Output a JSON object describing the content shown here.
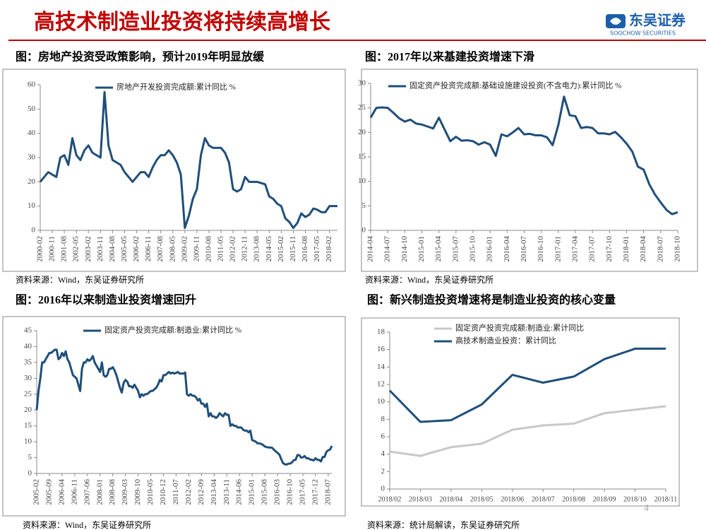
{
  "header": {
    "title": "高技术制造业投资将持续高增长",
    "logo": "东吴证券",
    "logo_en": "SOOCHOW SECURITIES",
    "page": "4"
  },
  "chart_data": [
    {
      "type": "line",
      "title": "图：房地产投资受政策影响，预计2019年明显放缓",
      "source": "资料来源：Wind，东吴证券研究所",
      "categories": [
        "2000-02",
        null,
        null,
        "2000-11",
        null,
        null,
        "2001-08",
        null,
        null,
        "2002-05",
        null,
        null,
        "2003-02",
        null,
        null,
        "2003-11",
        null,
        null,
        "2004-08",
        null,
        null,
        "2005-05",
        null,
        null,
        "2006-02",
        null,
        null,
        "2006-11",
        null,
        null,
        "2007-08",
        null,
        null,
        "2008-05",
        null,
        null,
        "2009-02",
        null,
        null,
        "2009-11",
        null,
        null,
        "2010-08",
        null,
        null,
        "2011-05",
        null,
        null,
        "2012-02",
        null,
        null,
        "2012-11",
        null,
        null,
        "2013-08",
        null,
        null,
        "2014-05",
        null,
        null,
        "2015-02",
        null,
        null,
        "2015-11",
        null,
        null,
        "2016-08",
        null,
        null,
        "2017-05",
        null,
        null,
        "2018-02",
        null,
        null
      ],
      "series": [
        {
          "name": "房地产开发投资完成额:累计同比 %",
          "color": "#1f4e79",
          "values": [
            20,
            22,
            24,
            23,
            22,
            30,
            31,
            27,
            38,
            31,
            29,
            33,
            35,
            32,
            31,
            30,
            57,
            35,
            29,
            28,
            27,
            24,
            22,
            20,
            22,
            24,
            24,
            22,
            26,
            29,
            31,
            31,
            33,
            31,
            28,
            23,
            1,
            6,
            13,
            17,
            31,
            38,
            35,
            34,
            34,
            34,
            32,
            28,
            17,
            16,
            17,
            22,
            20,
            20,
            20,
            19.5,
            19,
            14,
            13,
            11,
            10,
            5,
            3.5,
            1,
            3,
            7,
            5.5,
            6.5,
            9,
            8.5,
            7.5,
            7.5,
            10,
            10,
            10
          ]
        }
      ],
      "ylim": [
        0,
        60
      ],
      "yticks": [
        0,
        10,
        20,
        30,
        40,
        50,
        60
      ]
    },
    {
      "type": "line",
      "title": "图：2017年以来基建投资增速下滑",
      "source": "资料来源：Wind，东吴证券研究所",
      "categories": [
        "2014-04",
        null,
        null,
        "2014-07",
        null,
        null,
        "2014-10",
        null,
        null,
        "2015-01",
        null,
        null,
        "2015-04",
        null,
        null,
        "2015-07",
        null,
        null,
        "2015-10",
        null,
        null,
        "2016-01",
        null,
        null,
        "2016-04",
        null,
        null,
        "2016-07",
        null,
        null,
        "2016-10",
        null,
        null,
        "2017-01",
        null,
        null,
        "2017-04",
        null,
        null,
        "2017-07",
        null,
        null,
        "2017-10",
        null,
        null,
        "2018-01",
        null,
        null,
        "2018-04",
        null,
        null,
        "2018-07",
        null,
        null,
        "2018-10"
      ],
      "series": [
        {
          "name": "固定资产投资完成额:基础设施建设投资(不含电力):累计同比 %",
          "color": "#1f4e79",
          "values": [
            23,
            25,
            25.1,
            25,
            24,
            22.9,
            22.2,
            22.6,
            21.8,
            21.6,
            21.2,
            20.8,
            23,
            20.6,
            18.2,
            19.1,
            18.3,
            18.4,
            18.2,
            17.5,
            18,
            17.5,
            15.2,
            19.6,
            19.2,
            20,
            20.9,
            19.6,
            19.7,
            19.4,
            19.4,
            19,
            17.4,
            21.5,
            27.3,
            23.5,
            23.3,
            20.9,
            21.1,
            20.9,
            19.8,
            19.8,
            19.6,
            20.1,
            19,
            17.7,
            16.1,
            13,
            12.4,
            9.4,
            7.3,
            5.7,
            4.2,
            3.3,
            3.7
          ]
        }
      ],
      "ylim": [
        0,
        30
      ],
      "yticks": [
        0,
        5,
        10,
        15,
        20,
        25,
        30
      ]
    },
    {
      "type": "line",
      "title": "图：2016年以来制造业投资增速回升",
      "source": "资料来源：Wind，东吴证券研究所",
      "categories": [
        "2005-02",
        null,
        null,
        null,
        null,
        null,
        null,
        "2005-09",
        null,
        null,
        null,
        null,
        null,
        null,
        "2006-04",
        null,
        null,
        null,
        null,
        null,
        null,
        "2006-11",
        null,
        null,
        null,
        null,
        null,
        null,
        "2007-06",
        null,
        null,
        null,
        null,
        null,
        null,
        "2008-01",
        null,
        null,
        null,
        null,
        null,
        null,
        "2008-08",
        null,
        null,
        null,
        null,
        null,
        null,
        "2009-03",
        null,
        null,
        null,
        null,
        null,
        null,
        "2009-10",
        null,
        null,
        null,
        null,
        null,
        null,
        "2010-05",
        null,
        null,
        null,
        null,
        null,
        null,
        "2010-12",
        null,
        null,
        null,
        null,
        null,
        null,
        "2011-07",
        null,
        null,
        null,
        null,
        null,
        null,
        "2012-02",
        null,
        null,
        null,
        null,
        null,
        null,
        "2012-09",
        null,
        null,
        null,
        null,
        null,
        null,
        "2013-04",
        null,
        null,
        null,
        null,
        null,
        null,
        "2013-11",
        null,
        null,
        null,
        null,
        null,
        null,
        "2014-06",
        null,
        null,
        null,
        null,
        null,
        null,
        "2015-01",
        null,
        null,
        null,
        null,
        null,
        null,
        "2015-08",
        null,
        null,
        null,
        null,
        null,
        null,
        "2016-03",
        null,
        null,
        null,
        null,
        null,
        null,
        "2016-10",
        null,
        null,
        null,
        null,
        null,
        null,
        "2017-05",
        null,
        null,
        null,
        null,
        null,
        null,
        "2017-12",
        null,
        null,
        null,
        null,
        null,
        null,
        "2018-07",
        null,
        null
      ],
      "series": [
        {
          "name": "固定资产投资完成额:制造业:累计同比 %",
          "color": "#1f4e79",
          "values": [
            20,
            26,
            30,
            35,
            35,
            36,
            37,
            38,
            38,
            38.5,
            39,
            39,
            36,
            36.5,
            38,
            37,
            38.5,
            36,
            35,
            33,
            31,
            30.5,
            30,
            28,
            26,
            33,
            35,
            35,
            36,
            35.5,
            36,
            37,
            35,
            34,
            33,
            32,
            35,
            31,
            30.5,
            31,
            33,
            33,
            33.5,
            32.5,
            31,
            29,
            27,
            25.5,
            28.5,
            29.5,
            29,
            27.5,
            27.5,
            27,
            28,
            27,
            26,
            24,
            25,
            24.5,
            25,
            25,
            25.5,
            26,
            26,
            26.5,
            27,
            28,
            29.5,
            29,
            31,
            31,
            31.5,
            32,
            31.5,
            31.8,
            31.5,
            31.7,
            32,
            31.5,
            31.5,
            31.5,
            31.8,
            25,
            24.5,
            25,
            24.5,
            24.5,
            24,
            23,
            23.5,
            22,
            22,
            21,
            22,
            18,
            19,
            18,
            18,
            17.5,
            18,
            19,
            18.5,
            18,
            19,
            18.5,
            18.5,
            15,
            15.5,
            15,
            15,
            14.5,
            14.5,
            14.5,
            13.8,
            13.5,
            13.5,
            13,
            13.5,
            10.5,
            10.3,
            10,
            9.5,
            9.5,
            9.3,
            9,
            8.5,
            8.3,
            8.2,
            8.2,
            8.1,
            7.5,
            7,
            6.5,
            6,
            4.6,
            3.3,
            2.9,
            2.8,
            3.1,
            3.1,
            3.5,
            4.2,
            4.3,
            5.8,
            5.8,
            5,
            5.1,
            5.5,
            4.8,
            4.8,
            4.4,
            4.3,
            4.1,
            4.8,
            4.3,
            4.3,
            3.8,
            5.2,
            5.2,
            6.8,
            7.3,
            7.5,
            8.7
          ]
        }
      ],
      "ylim": [
        0,
        45
      ],
      "yticks": [
        0,
        5,
        10,
        15,
        20,
        25,
        30,
        35,
        40,
        45
      ]
    },
    {
      "type": "line",
      "title": "图：新兴制造投资增速将是制造业投资的核心变量",
      "source": "资料来源：统计局解读，东吴证券研究所",
      "categories": [
        "2018/02",
        "2018/03",
        "2018/04",
        "2018/05",
        "2018/06",
        "2018/07",
        "2018/08",
        "2018/09",
        "2018/10",
        "2018/11"
      ],
      "series": [
        {
          "name": "固定资产投资完成额:制造业:累计同比",
          "color": "#c8c8c8",
          "values": [
            4.3,
            3.8,
            4.8,
            5.2,
            6.8,
            7.3,
            7.5,
            8.7,
            9.1,
            9.5
          ]
        },
        {
          "name": "高技术制造业投资：累计同比",
          "color": "#1f4e79",
          "values": [
            11.3,
            7.7,
            7.9,
            9.7,
            13.1,
            12.2,
            12.9,
            14.9,
            16.1,
            16.1
          ]
        }
      ],
      "ylim": [
        0,
        18
      ],
      "yticks": [
        0,
        2,
        4,
        6,
        8,
        10,
        12,
        14,
        16,
        18
      ]
    }
  ]
}
